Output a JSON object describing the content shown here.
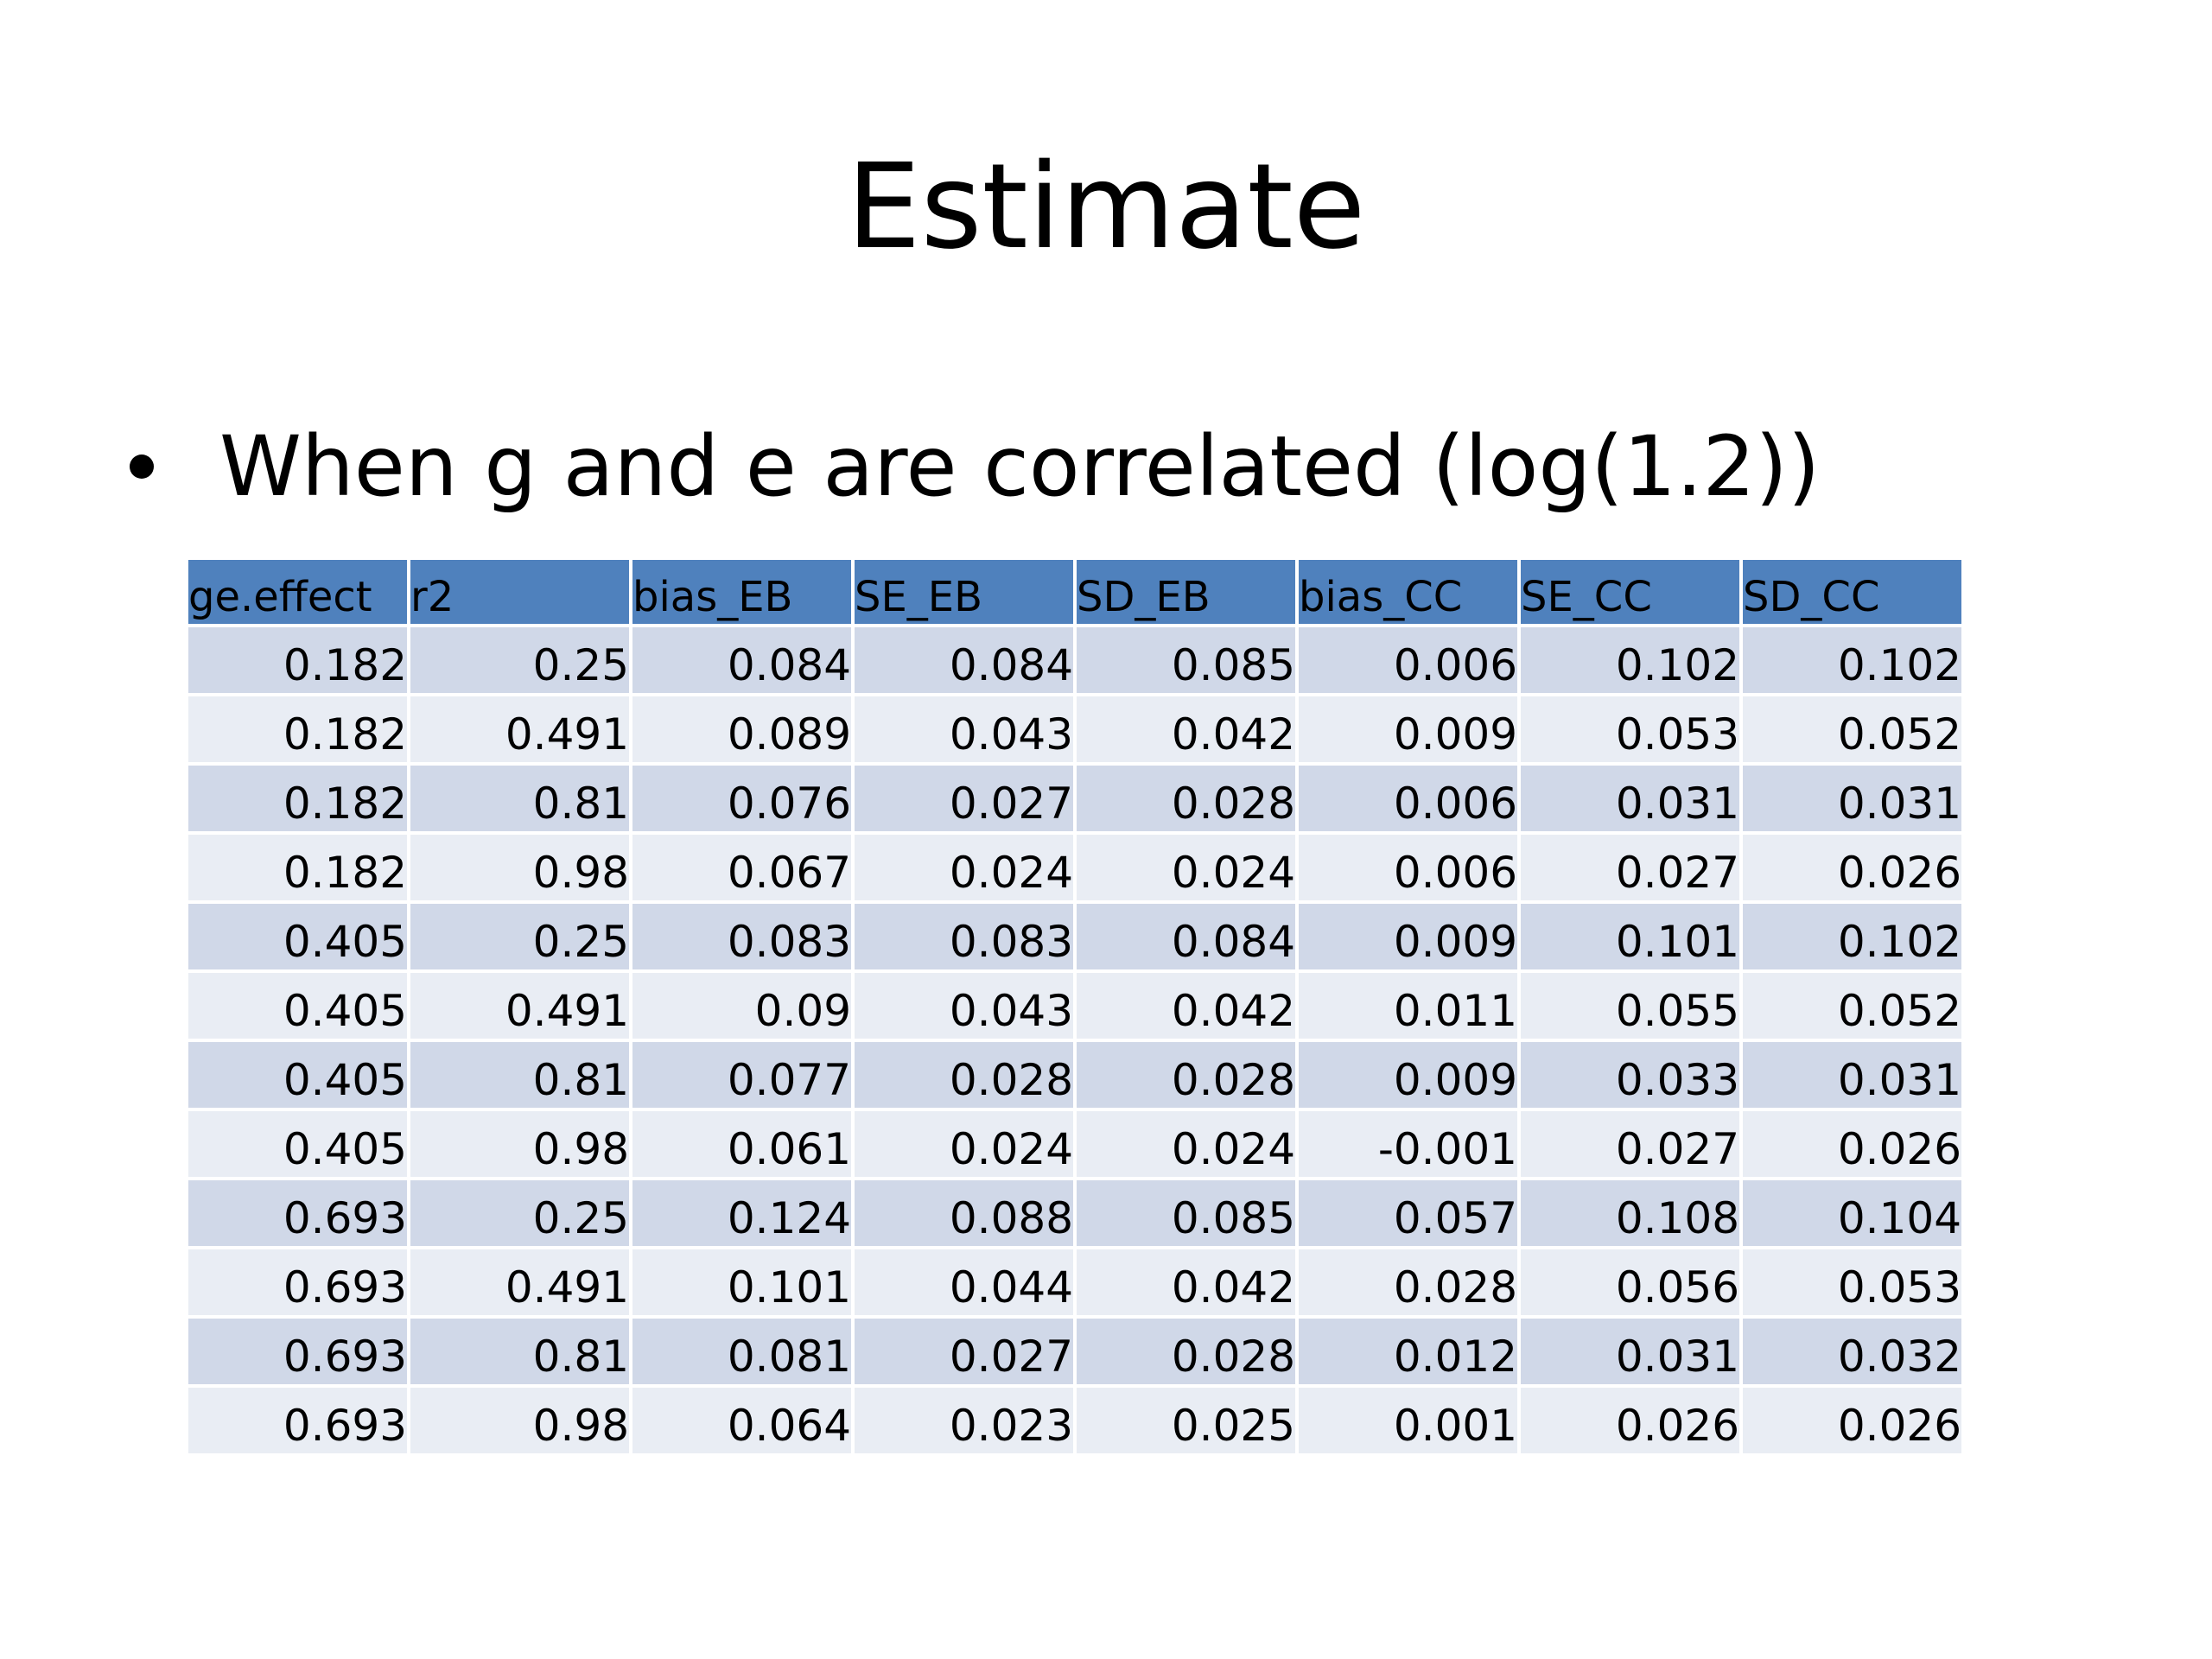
{
  "slide": {
    "title": "Estimate",
    "bullet": "When g and e are correlated (log(1.2))"
  },
  "table": {
    "headers": [
      "ge.effect",
      "r2",
      "bias_EB",
      "SE_EB",
      "SD_EB",
      "bias_CC",
      "SE_CC",
      "SD_CC"
    ],
    "rows": [
      [
        "0.182",
        "0.25",
        "0.084",
        "0.084",
        "0.085",
        "0.006",
        "0.102",
        "0.102"
      ],
      [
        "0.182",
        "0.491",
        "0.089",
        "0.043",
        "0.042",
        "0.009",
        "0.053",
        "0.052"
      ],
      [
        "0.182",
        "0.81",
        "0.076",
        "0.027",
        "0.028",
        "0.006",
        "0.031",
        "0.031"
      ],
      [
        "0.182",
        "0.98",
        "0.067",
        "0.024",
        "0.024",
        "0.006",
        "0.027",
        "0.026"
      ],
      [
        "0.405",
        "0.25",
        "0.083",
        "0.083",
        "0.084",
        "0.009",
        "0.101",
        "0.102"
      ],
      [
        "0.405",
        "0.491",
        "0.09",
        "0.043",
        "0.042",
        "0.011",
        "0.055",
        "0.052"
      ],
      [
        "0.405",
        "0.81",
        "0.077",
        "0.028",
        "0.028",
        "0.009",
        "0.033",
        "0.031"
      ],
      [
        "0.405",
        "0.98",
        "0.061",
        "0.024",
        "0.024",
        "-0.001",
        "0.027",
        "0.026"
      ],
      [
        "0.693",
        "0.25",
        "0.124",
        "0.088",
        "0.085",
        "0.057",
        "0.108",
        "0.104"
      ],
      [
        "0.693",
        "0.491",
        "0.101",
        "0.044",
        "0.042",
        "0.028",
        "0.056",
        "0.053"
      ],
      [
        "0.693",
        "0.81",
        "0.081",
        "0.027",
        "0.028",
        "0.012",
        "0.031",
        "0.032"
      ],
      [
        "0.693",
        "0.98",
        "0.064",
        "0.023",
        "0.025",
        "0.001",
        "0.026",
        "0.026"
      ]
    ]
  },
  "colors": {
    "header_bg": "#4f81bd",
    "row_band_dark": "#d0d8e8",
    "row_band_light": "#e9edf4"
  }
}
